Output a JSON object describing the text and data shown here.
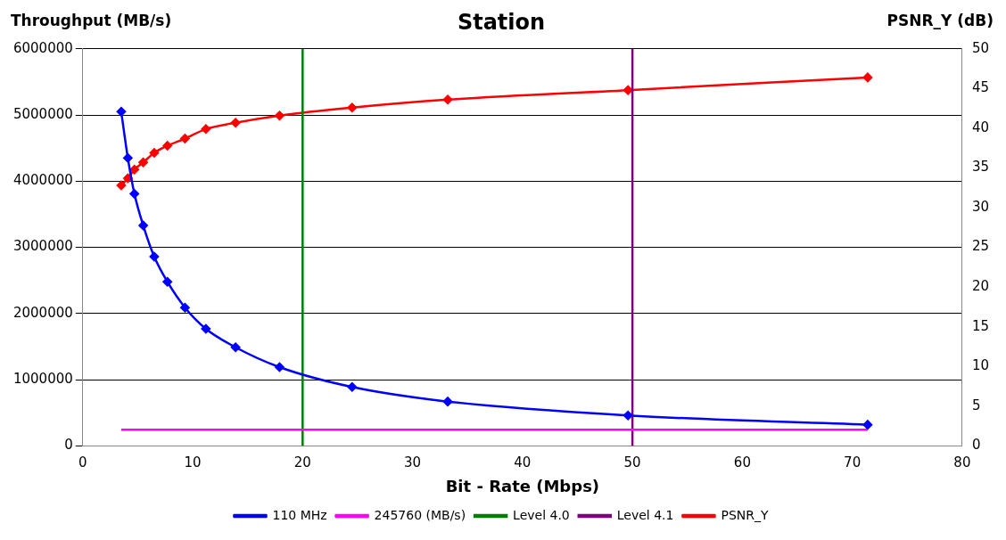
{
  "chart_data": {
    "type": "line",
    "title": "Station",
    "xlabel": "Bit - Rate (Mbps)",
    "ylabel": "Throughput (MB/s)",
    "y2label": "PSNR_Y (dB)",
    "xlim": [
      0,
      80
    ],
    "xticks": [
      0,
      10,
      20,
      30,
      40,
      50,
      60,
      70,
      80
    ],
    "ylim": [
      0,
      6000000
    ],
    "yticks": [
      0,
      1000000,
      2000000,
      3000000,
      4000000,
      5000000,
      6000000
    ],
    "y2lim": [
      0,
      50
    ],
    "y2ticks": [
      0,
      5,
      10,
      15,
      20,
      25,
      30,
      35,
      40,
      45,
      50
    ],
    "grid": "y",
    "legend": "bottom",
    "marker": "diamond",
    "line_style": "solid",
    "series": [
      {
        "name": "110 MHz",
        "color": "#0000ff",
        "x": [
          3.5,
          4.1,
          4.7,
          5.5,
          6.5,
          7.7,
          9.3,
          11.2,
          13.9,
          17.9,
          24.5,
          33.2,
          49.6,
          71.4
        ],
        "values": [
          5050000,
          4350000,
          3810000,
          3330000,
          2860000,
          2480000,
          2090000,
          1770000,
          1490000,
          1190000,
          890000,
          670000,
          460000,
          320000
        ]
      },
      {
        "name": "245760 (MB/s)",
        "color": "#ff00ff",
        "marker": "none",
        "x": [
          3.5,
          71.4
        ],
        "values": [
          245760,
          245760
        ]
      },
      {
        "name": "PSNR_Y",
        "color": "#ff0000",
        "axis": "y2",
        "x": [
          3.5,
          4.1,
          4.7,
          5.5,
          6.5,
          7.7,
          9.3,
          11.2,
          13.9,
          17.9,
          24.5,
          33.2,
          49.6,
          71.4
        ],
        "values": [
          32.8,
          33.7,
          34.8,
          35.7,
          36.9,
          37.8,
          38.7,
          39.9,
          40.7,
          41.6,
          42.6,
          43.6,
          44.8,
          46.4
        ]
      }
    ],
    "ref_lines": [
      {
        "axis": "x",
        "value": 20,
        "label": "Level 4.0",
        "color": "#008000"
      },
      {
        "axis": "x",
        "value": 50,
        "label": "Level 4.1",
        "color": "#800080"
      }
    ]
  }
}
